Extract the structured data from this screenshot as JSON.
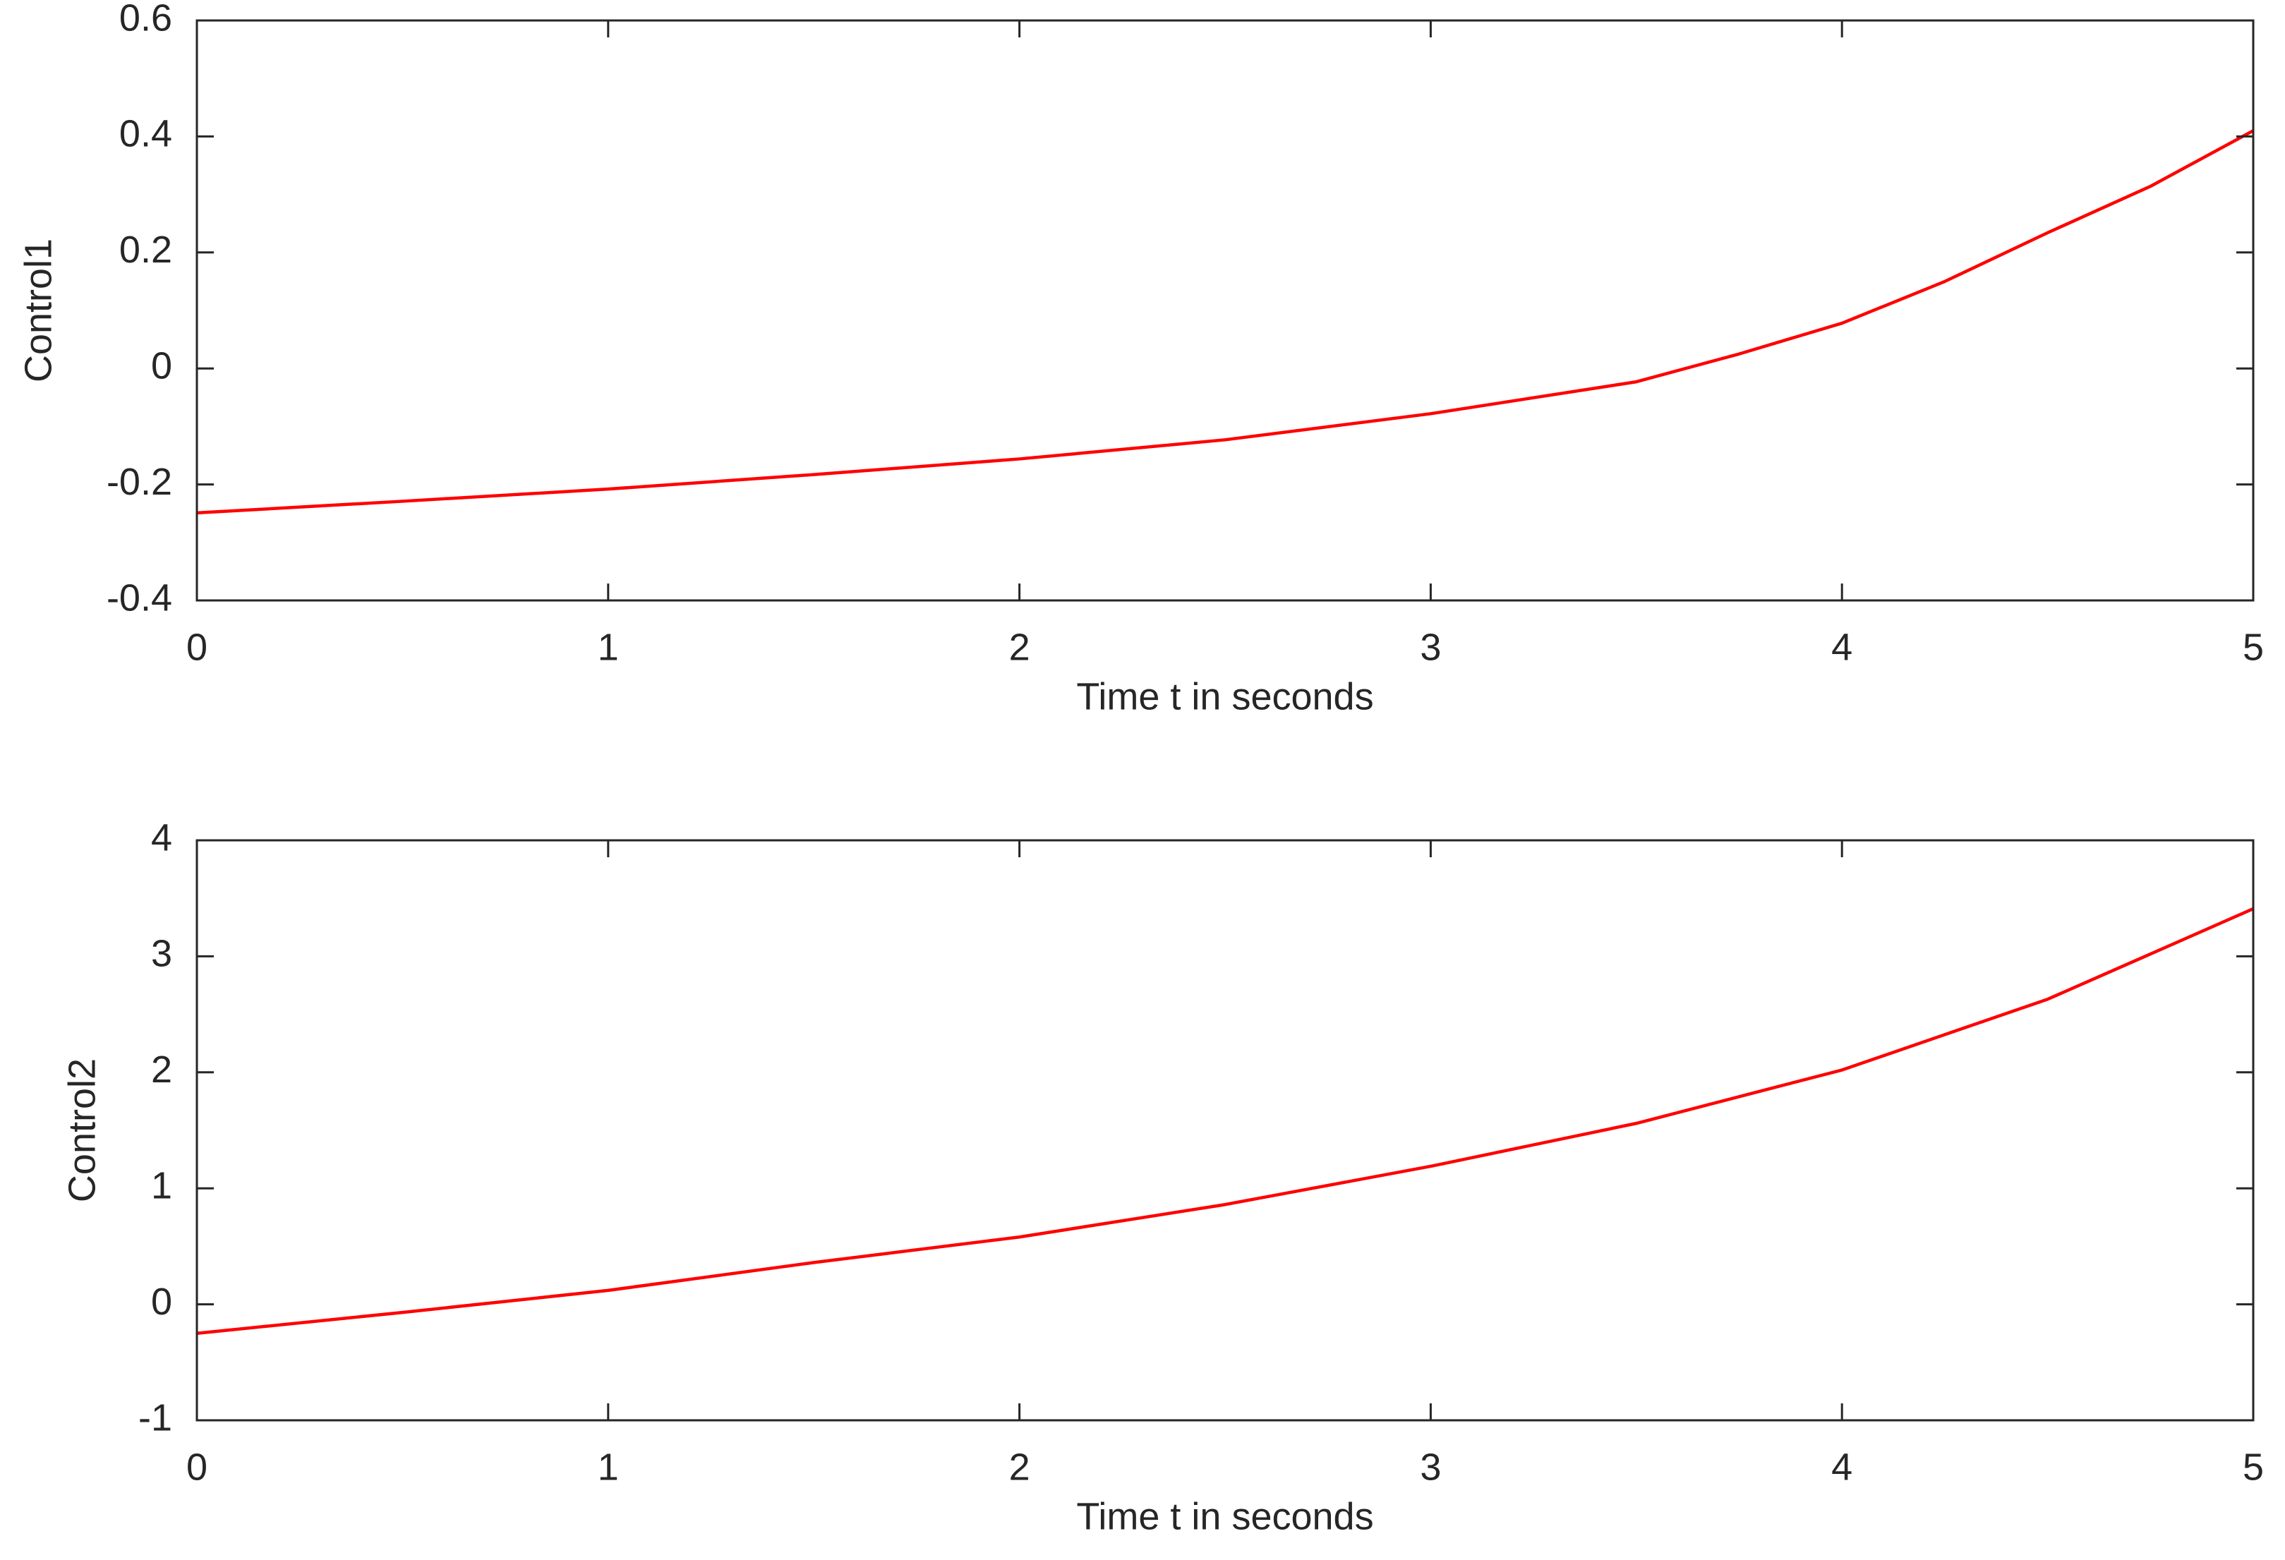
{
  "chart_data": [
    {
      "type": "line",
      "xlabel": "Time t in seconds",
      "ylabel": "Control1",
      "x": [
        0,
        0.5,
        1,
        1.5,
        2,
        2.5,
        3,
        3.5,
        3.75,
        4,
        4.25,
        4.5,
        4.75,
        5
      ],
      "series": [
        {
          "color": "#ff0000",
          "values": [
            -0.249,
            -0.229,
            -0.208,
            -0.183,
            -0.156,
            -0.123,
            -0.078,
            -0.023,
            0.025,
            0.078,
            0.15,
            0.234,
            0.314,
            0.41
          ]
        }
      ],
      "xlim": [
        0,
        5
      ],
      "xticks": [
        0,
        1,
        2,
        3,
        4,
        5
      ],
      "ylim": [
        -0.4,
        0.6
      ],
      "yticks": [
        -0.4,
        -0.2,
        0,
        0.2,
        0.4,
        0.6
      ],
      "grid": false
    },
    {
      "type": "line",
      "xlabel": "Time t in seconds",
      "ylabel": "Control2",
      "x": [
        0,
        0.5,
        1,
        1.5,
        2,
        2.5,
        3,
        3.5,
        4,
        4.5,
        5
      ],
      "series": [
        {
          "color": "#ff0000",
          "values": [
            -0.25,
            -0.07,
            0.12,
            0.36,
            0.58,
            0.86,
            1.19,
            1.56,
            2.02,
            2.63,
            3.41
          ]
        }
      ],
      "xlim": [
        0,
        5
      ],
      "xticks": [
        0,
        1,
        2,
        3,
        4,
        5
      ],
      "ylim": [
        -1,
        4
      ],
      "yticks": [
        -1,
        0,
        1,
        2,
        3,
        4
      ],
      "grid": false
    }
  ]
}
